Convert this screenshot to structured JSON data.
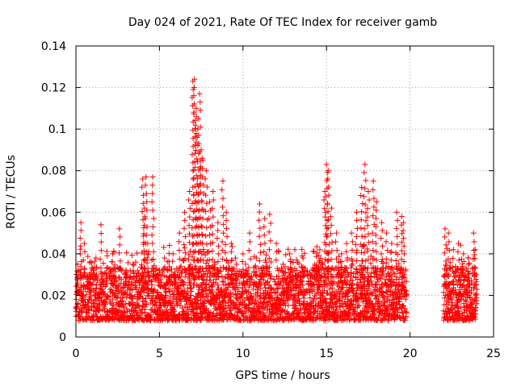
{
  "chart_data": {
    "type": "scatter",
    "title": "Day 024 of 2021, Rate Of TEC Index for receiver gamb",
    "xlabel": "GPS time / hours",
    "ylabel": "ROTI / TECUs",
    "xlim": [
      0,
      25
    ],
    "ylim": [
      0,
      0.14
    ],
    "xticks": [
      0,
      5,
      10,
      15,
      20,
      25
    ],
    "xtick_labels": [
      "0",
      "5",
      "10",
      "15",
      "20",
      "25"
    ],
    "yticks": [
      0,
      0.02,
      0.04,
      0.06,
      0.08,
      0.1,
      0.12,
      0.14
    ],
    "ytick_labels": [
      "0",
      "0.02",
      "0.04",
      "0.06",
      "0.08",
      "0.1",
      "0.12",
      "0.14"
    ],
    "grid": true,
    "marker": "+",
    "marker_color": "#ff0000",
    "data_gaps_hours": [
      [
        19.8,
        22.0
      ]
    ],
    "series": [
      {
        "name": "ROTI",
        "x": [
          0.1,
          0.3,
          0.5,
          0.8,
          1.2,
          1.5,
          1.8,
          2.2,
          2.6,
          3.0,
          3.4,
          3.8,
          4.0,
          4.1,
          4.2,
          4.3,
          4.6,
          5.0,
          5.3,
          5.6,
          5.9,
          6.2,
          6.5,
          6.8,
          7.0,
          7.1,
          7.2,
          7.3,
          7.4,
          7.5,
          7.6,
          7.8,
          8.0,
          8.2,
          8.5,
          8.8,
          9.0,
          9.3,
          9.6,
          10.0,
          10.4,
          10.8,
          11.0,
          11.3,
          11.6,
          12.0,
          12.4,
          12.8,
          13.2,
          13.6,
          14.0,
          14.3,
          14.6,
          14.9,
          15.0,
          15.1,
          15.3,
          15.6,
          15.9,
          16.2,
          16.5,
          16.8,
          17.1,
          17.3,
          17.5,
          17.8,
          18.0,
          18.3,
          18.6,
          18.9,
          19.2,
          19.5,
          19.6,
          22.1,
          22.3,
          22.6,
          22.9,
          23.2,
          23.5,
          23.8,
          23.9
        ],
        "y": [
          0.035,
          0.055,
          0.045,
          0.03,
          0.038,
          0.054,
          0.028,
          0.04,
          0.052,
          0.03,
          0.035,
          0.028,
          0.076,
          0.062,
          0.077,
          0.045,
          0.077,
          0.032,
          0.038,
          0.044,
          0.03,
          0.05,
          0.06,
          0.07,
          0.123,
          0.124,
          0.11,
          0.1,
          0.117,
          0.09,
          0.085,
          0.08,
          0.065,
          0.07,
          0.055,
          0.075,
          0.06,
          0.045,
          0.035,
          0.04,
          0.05,
          0.038,
          0.064,
          0.057,
          0.059,
          0.045,
          0.035,
          0.04,
          0.032,
          0.038,
          0.03,
          0.035,
          0.042,
          0.07,
          0.083,
          0.08,
          0.062,
          0.05,
          0.04,
          0.045,
          0.05,
          0.06,
          0.072,
          0.083,
          0.07,
          0.075,
          0.065,
          0.055,
          0.05,
          0.045,
          0.06,
          0.058,
          0.055,
          0.052,
          0.05,
          0.042,
          0.045,
          0.04,
          0.035,
          0.05,
          0.042
        ]
      }
    ],
    "baseline_band": {
      "typical_low": 0.008,
      "typical_high": 0.025
    }
  }
}
